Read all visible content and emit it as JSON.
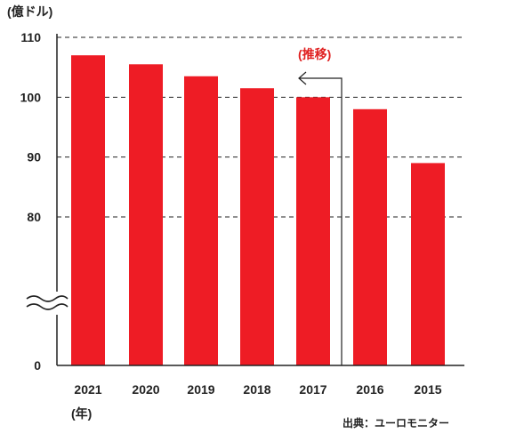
{
  "chart_data": {
    "type": "bar",
    "unit_label": "(億ドル)",
    "categories": [
      "2021",
      "2020",
      "2019",
      "2018",
      "2017",
      "2016",
      "2015"
    ],
    "values": [
      107,
      105.5,
      103.5,
      101.5,
      100,
      98,
      89
    ],
    "x_unit_label": "(年)",
    "y_ticks": [
      0,
      80,
      90,
      100,
      110
    ],
    "ylim": [
      75,
      110
    ],
    "axis_break": true,
    "gridlines": "dashed",
    "annotation": "(推移)",
    "source": "出典：ユーロモニター",
    "colors": {
      "bar": "#ee1c25",
      "annotation": "#e02020",
      "axis": "#222222"
    }
  }
}
